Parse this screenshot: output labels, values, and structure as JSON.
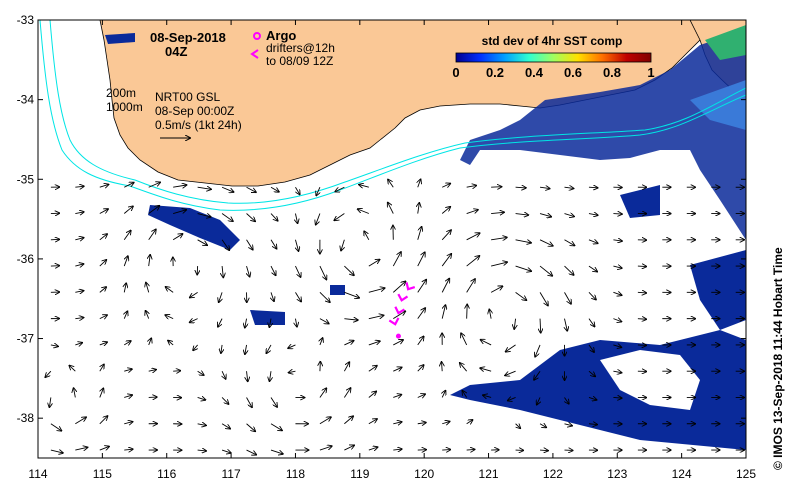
{
  "chart_data": {
    "type": "map",
    "xlim": [
      114,
      125
    ],
    "ylim": [
      -38.5,
      -33
    ],
    "x_ticks": [
      "114",
      "115",
      "116",
      "117",
      "118",
      "119",
      "120",
      "121",
      "122",
      "123",
      "124",
      "125"
    ],
    "y_ticks": [
      "-33",
      "-34",
      "-35",
      "-36",
      "-37",
      "-38"
    ],
    "date_title": "08-Sep-2018",
    "time_title": "04Z",
    "legend": {
      "argo_label": "Argo",
      "drifters_label": "drifters@12h",
      "drifters_label2": "to 08/09 12Z",
      "argo_color": "#ff00ff"
    },
    "contours": {
      "label_200": "200m",
      "label_1000": "1000m",
      "color": "#00e5e5"
    },
    "source_info": {
      "line1": "NRT00 GSL",
      "line2": "08-Sep 00:00Z",
      "line3": "0.5m/s (1kt 24h)"
    },
    "colorbar": {
      "title": "std dev of 4hr SST comp",
      "ticks": [
        "0",
        "0.2",
        "0.4",
        "0.6",
        "0.8",
        "1"
      ],
      "colors": [
        "#000090",
        "#0030ff",
        "#00a0ff",
        "#30ffd0",
        "#a0ff60",
        "#ffe000",
        "#ff7000",
        "#c00000",
        "#800000"
      ]
    },
    "land_color": "#fac896",
    "credit": "© IMOS 13-Sep-2018 11:44 Hobart Time",
    "drifter_track": [
      [
        119.75,
        -36.38
      ],
      [
        119.65,
        -36.52
      ],
      [
        119.6,
        -36.68
      ],
      [
        119.55,
        -36.82
      ],
      [
        119.6,
        -36.97
      ]
    ]
  }
}
